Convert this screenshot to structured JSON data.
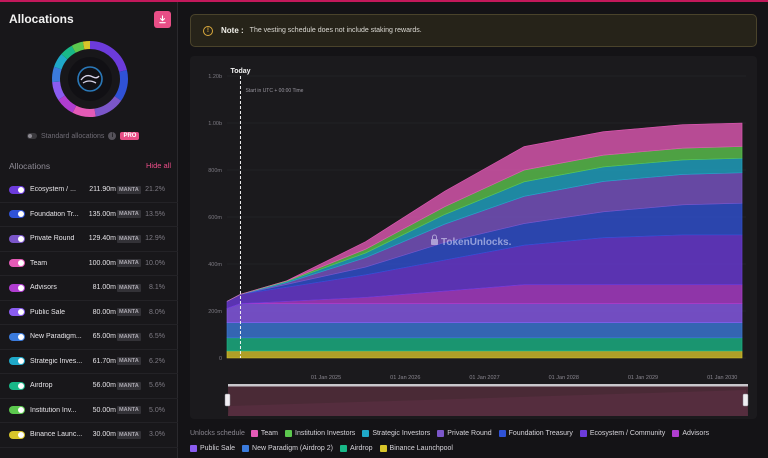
{
  "sidebar": {
    "title": "Allocations",
    "download_icon": "download-icon",
    "standard_label": "Standard allocations",
    "pro_badge": "PRO",
    "list_title": "Allocations",
    "hide_all": "Hide all",
    "items": [
      {
        "name": "Ecosystem / ...",
        "amount": "211.90m",
        "token": "MANTA",
        "pct": "21.2%",
        "color": "#6c3bdb"
      },
      {
        "name": "Foundation Tr...",
        "amount": "135.00m",
        "token": "MANTA",
        "pct": "13.5%",
        "color": "#2f52d6"
      },
      {
        "name": "Private Round",
        "amount": "129.40m",
        "token": "MANTA",
        "pct": "12.9%",
        "color": "#7b56c9"
      },
      {
        "name": "Team",
        "amount": "100.00m",
        "token": "MANTA",
        "pct": "10.0%",
        "color": "#e35ab6"
      },
      {
        "name": "Advisors",
        "amount": "81.00m",
        "token": "MANTA",
        "pct": "8.1%",
        "color": "#b03dd0"
      },
      {
        "name": "Public Sale",
        "amount": "80.00m",
        "token": "MANTA",
        "pct": "8.0%",
        "color": "#8a5cf0"
      },
      {
        "name": "New Paradigm...",
        "amount": "65.00m",
        "token": "MANTA",
        "pct": "6.5%",
        "color": "#3b7bdc"
      },
      {
        "name": "Strategic Inves...",
        "amount": "61.70m",
        "token": "MANTA",
        "pct": "6.2%",
        "color": "#1fa8c8"
      },
      {
        "name": "Airdrop",
        "amount": "56.00m",
        "token": "MANTA",
        "pct": "5.6%",
        "color": "#19b888"
      },
      {
        "name": "Institution Inv...",
        "amount": "50.00m",
        "token": "MANTA",
        "pct": "5.0%",
        "color": "#5cc84e"
      },
      {
        "name": "Binance Launc...",
        "amount": "30.00m",
        "token": "MANTA",
        "pct": "3.0%",
        "color": "#d8c52a"
      }
    ]
  },
  "note": {
    "label": "Note :",
    "text": "The vesting schedule does not include staking rewards.",
    "icon": "warning-icon"
  },
  "watermark": "TokenUnlocks.",
  "legend_title": "Unlocks schedule",
  "chart_data": {
    "type": "area",
    "stacked": true,
    "title": "",
    "today_label": "Today",
    "start_label": "Start in UTC + 00:00 Time",
    "ylim": [
      0,
      1200
    ],
    "y_ticks": [
      "0",
      "200m",
      "400m",
      "600m",
      "800m",
      "1.00b",
      "1.20b"
    ],
    "y_tick_values": [
      0,
      200,
      400,
      600,
      800,
      1000,
      1200
    ],
    "x_labels": [
      "01 Jan 2025",
      "01 Jan 2026",
      "01 Jan 2027",
      "01 Jan 2028",
      "01 Jan 2029",
      "01 Jan 2030"
    ],
    "x_label_values": [
      2025.0,
      2026.0,
      2027.0,
      2028.0,
      2029.0,
      2030.0
    ],
    "x_range": [
      2023.75,
      2030.3
    ],
    "today_x": 2023.92,
    "x": [
      2023.75,
      2023.92,
      2024.5,
      2025.5,
      2026.5,
      2027.5,
      2028.5,
      2029.5,
      2030.25
    ],
    "series": [
      {
        "name": "Binance Launchpool",
        "color": "#d8c52a",
        "values": [
          30,
          30,
          30,
          30,
          30,
          30,
          30,
          30,
          30
        ]
      },
      {
        "name": "Airdrop",
        "color": "#19b888",
        "values": [
          56,
          56,
          56,
          56,
          56,
          56,
          56,
          56,
          56
        ]
      },
      {
        "name": "New Paradigm (Airdrop 2)",
        "color": "#3b7bdc",
        "values": [
          65,
          65,
          65,
          65,
          65,
          65,
          65,
          65,
          65
        ]
      },
      {
        "name": "Public Sale",
        "color": "#8a5cf0",
        "values": [
          60,
          80,
          80,
          80,
          80,
          80,
          80,
          80,
          80
        ]
      },
      {
        "name": "Advisors",
        "color": "#b03dd0",
        "values": [
          0,
          0,
          10,
          27,
          54,
          81,
          81,
          81,
          81
        ]
      },
      {
        "name": "Ecosystem / Community",
        "color": "#6c3bdb",
        "values": [
          30,
          40,
          60,
          96,
          132,
          168,
          200,
          211.9,
          211.9
        ]
      },
      {
        "name": "Foundation Treasury",
        "color": "#2f52d6",
        "values": [
          0,
          0,
          12,
          33,
          75,
          92,
          110,
          128,
          135
        ]
      },
      {
        "name": "Private Round",
        "color": "#7b56c9",
        "values": [
          0,
          0,
          7,
          40,
          78,
          116,
          129.4,
          129.4,
          129.4
        ]
      },
      {
        "name": "Strategic Investors",
        "color": "#1fa8c8",
        "values": [
          0,
          0,
          5,
          20,
          41,
          61.7,
          61.7,
          61.7,
          61.7
        ]
      },
      {
        "name": "Institution Investors",
        "color": "#5cc84e",
        "values": [
          0,
          0,
          3,
          16,
          33,
          50,
          50,
          50,
          50
        ]
      },
      {
        "name": "Team",
        "color": "#e35ab6",
        "values": [
          0,
          0,
          0,
          32,
          66,
          100,
          100,
          100,
          100
        ]
      }
    ],
    "legend_order": [
      "Team",
      "Institution Investors",
      "Strategic Investors",
      "Private Round",
      "Foundation Treasury",
      "Ecosystem / Community",
      "Advisors",
      "Public Sale",
      "New Paradigm (Airdrop 2)",
      "Airdrop",
      "Binance Launchpool"
    ]
  }
}
